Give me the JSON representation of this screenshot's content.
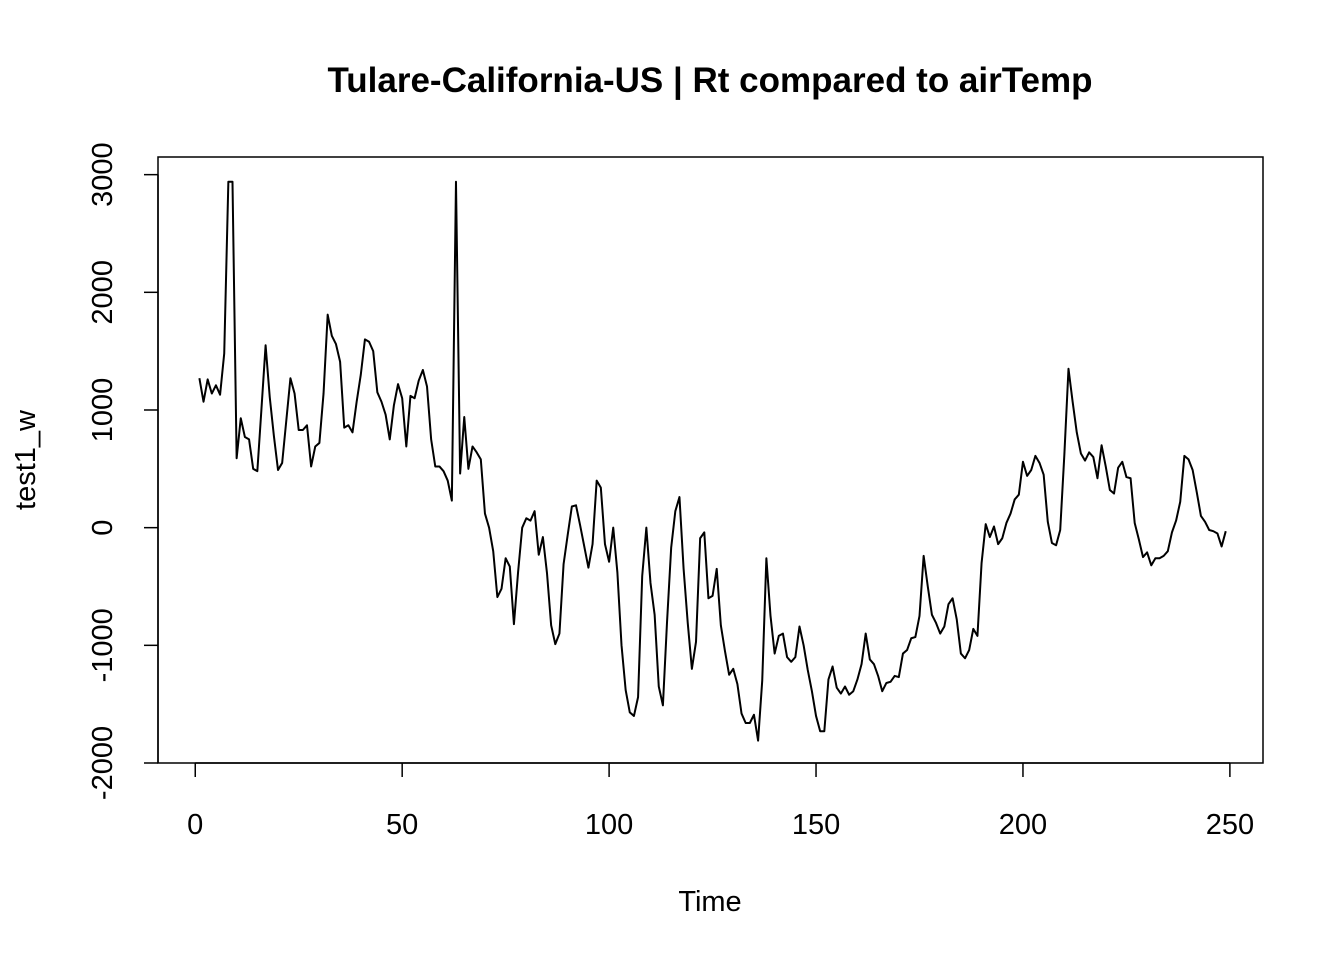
{
  "chart_data": {
    "type": "line",
    "title": "Tulare-California-US | Rt compared to airTemp",
    "xlabel": "Time",
    "ylabel": "test1_w",
    "xlim": [
      -9,
      258
    ],
    "ylim": [
      -2000,
      3150
    ],
    "x_ticks": [
      0,
      50,
      100,
      150,
      200,
      250
    ],
    "y_ticks": [
      -2000,
      -1000,
      0,
      1000,
      2000,
      3000
    ],
    "grid": false,
    "legend": "none",
    "series": [
      {
        "color": "#000000",
        "x_start": 1,
        "values": [
          1270,
          1070,
          1260,
          1140,
          1210,
          1130,
          1480,
          2940,
          2940,
          590,
          930,
          770,
          750,
          500,
          480,
          1010,
          1550,
          1110,
          780,
          490,
          550,
          910,
          1270,
          1140,
          830,
          830,
          870,
          520,
          690,
          720,
          1140,
          1810,
          1630,
          1560,
          1410,
          850,
          870,
          810,
          1070,
          1300,
          1600,
          1580,
          1500,
          1150,
          1070,
          960,
          750,
          1040,
          1220,
          1100,
          690,
          1120,
          1100,
          1250,
          1340,
          1200,
          750,
          520,
          520,
          480,
          400,
          230,
          2940,
          460,
          940,
          500,
          690,
          640,
          580,
          120,
          0,
          -200,
          -590,
          -520,
          -260,
          -330,
          -820,
          -380,
          0,
          80,
          60,
          140,
          -230,
          -80,
          -390,
          -830,
          -990,
          -900,
          -310,
          -60,
          180,
          190,
          20,
          -160,
          -340,
          -140,
          400,
          340,
          -140,
          -290,
          0,
          -380,
          -1000,
          -1380,
          -1570,
          -1600,
          -1440,
          -410,
          0,
          -470,
          -740,
          -1350,
          -1510,
          -800,
          -170,
          140,
          260,
          -350,
          -810,
          -1200,
          -970,
          -90,
          -40,
          -600,
          -580,
          -350,
          -830,
          -1050,
          -1250,
          -1200,
          -1330,
          -1580,
          -1660,
          -1660,
          -1590,
          -1810,
          -1300,
          -260,
          -750,
          -1070,
          -920,
          -900,
          -1100,
          -1140,
          -1100,
          -840,
          -1000,
          -1210,
          -1390,
          -1600,
          -1730,
          -1730,
          -1290,
          -1180,
          -1360,
          -1410,
          -1350,
          -1420,
          -1390,
          -1290,
          -1160,
          -900,
          -1120,
          -1160,
          -1260,
          -1390,
          -1320,
          -1310,
          -1260,
          -1270,
          -1070,
          -1040,
          -940,
          -930,
          -750,
          -240,
          -500,
          -740,
          -810,
          -900,
          -840,
          -650,
          -600,
          -780,
          -1070,
          -1110,
          -1040,
          -860,
          -920,
          -300,
          30,
          -80,
          10,
          -140,
          -90,
          40,
          120,
          240,
          280,
          560,
          440,
          490,
          610,
          550,
          450,
          50,
          -130,
          -150,
          -20,
          620,
          1350,
          1070,
          810,
          630,
          570,
          640,
          600,
          420,
          700,
          520,
          320,
          290,
          510,
          560,
          430,
          420,
          40,
          -100,
          -250,
          -210,
          -320,
          -260,
          -260,
          -240,
          -200,
          -40,
          60,
          220,
          610,
          580,
          490,
          300,
          100,
          50,
          -20,
          -30,
          -50,
          -160,
          -30
        ]
      }
    ]
  }
}
